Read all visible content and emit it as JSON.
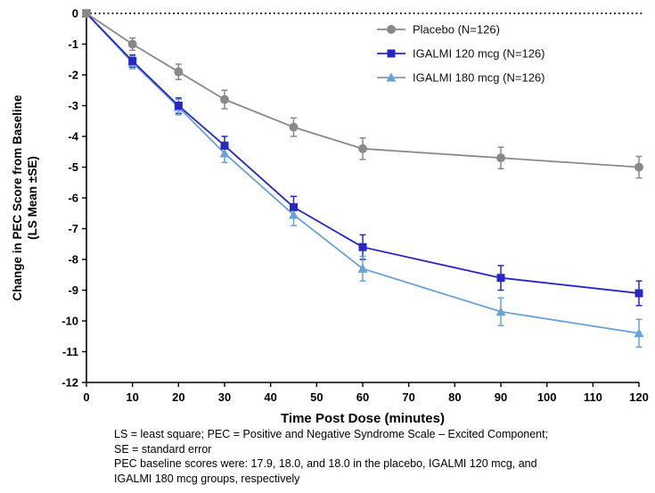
{
  "chart_data": {
    "type": "line",
    "x": [
      0,
      10,
      20,
      30,
      45,
      60,
      90,
      120
    ],
    "series": [
      {
        "name": "Placebo (N=126)",
        "marker": "circle",
        "color": "#898989",
        "values": [
          0,
          -1.0,
          -1.9,
          -2.8,
          -3.7,
          -4.4,
          -4.7,
          -5.0
        ],
        "se": [
          0,
          0.2,
          0.25,
          0.3,
          0.3,
          0.35,
          0.35,
          0.35
        ]
      },
      {
        "name": "IGALMI 120 mcg (N=126)",
        "marker": "square",
        "color": "#2727c4",
        "values": [
          0,
          -1.55,
          -3.0,
          -4.3,
          -6.3,
          -7.6,
          -8.6,
          -9.1
        ],
        "se": [
          0,
          0.2,
          0.25,
          0.3,
          0.35,
          0.4,
          0.4,
          0.4
        ]
      },
      {
        "name": "IGALMI 180 mcg (N=126)",
        "marker": "triangle",
        "color": "#68a2d8",
        "values": [
          0,
          -1.6,
          -3.05,
          -4.55,
          -6.55,
          -8.3,
          -9.7,
          -10.4
        ],
        "se": [
          0,
          0.2,
          0.25,
          0.3,
          0.35,
          0.4,
          0.45,
          0.45
        ]
      }
    ],
    "xlabel": "Time Post Dose (minutes)",
    "ylabel_line1": "Change in PEC Score from Baseline",
    "ylabel_line2": "(LS Mean ±SE)",
    "xlim": [
      0,
      120
    ],
    "ylim": [
      -12,
      0
    ],
    "x_ticks": [
      0,
      10,
      20,
      30,
      40,
      50,
      60,
      70,
      80,
      90,
      100,
      110,
      120
    ],
    "y_ticks": [
      0,
      -1,
      -2,
      -3,
      -4,
      -5,
      -6,
      -7,
      -8,
      -9,
      -10,
      -11,
      -12
    ],
    "reference_line_y": 0,
    "grid": false,
    "legend_position": "top-right"
  },
  "footnotes": [
    "LS = least square; PEC = Positive and Negative Syndrome Scale – Excited Component;",
    "SE = standard error",
    "PEC baseline scores were: 17.9, 18.0, and 18.0 in the placebo, IGALMI 120 mcg, and",
    "IGALMI 180 mcg groups, respectively"
  ]
}
